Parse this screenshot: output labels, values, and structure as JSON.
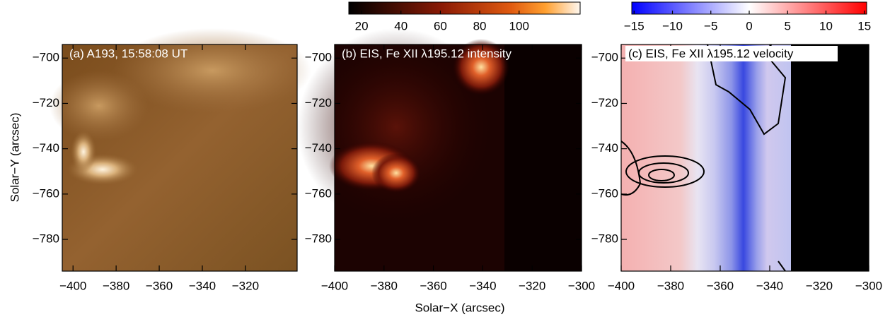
{
  "chart_data": [
    {
      "type": "image",
      "title": "(a) A193, 15:58:08 UT",
      "ylabel": "Solar−Y (arcsec)",
      "xlim": [
        -405,
        -296
      ],
      "ylim": [
        -794,
        -694
      ],
      "xticks": [
        {
          "value": -400,
          "label": "−400"
        },
        {
          "value": -380,
          "label": "−380"
        },
        {
          "value": -360,
          "label": "−360"
        },
        {
          "value": -340,
          "label": "−340"
        },
        {
          "value": -320,
          "label": "−320"
        }
      ],
      "yticks": [
        {
          "value": -700,
          "label": "−700"
        },
        {
          "value": -720,
          "label": "−720"
        },
        {
          "value": -740,
          "label": "−740"
        },
        {
          "value": -760,
          "label": "−760"
        },
        {
          "value": -780,
          "label": "−780"
        }
      ]
    },
    {
      "type": "image",
      "title": "(b) EIS, Fe XII λ195.12 intensity",
      "xlabel": "Solar−X (arcsec)",
      "xlim": [
        -400,
        -300
      ],
      "ylim": [
        -794,
        -694
      ],
      "xticks": [
        {
          "value": -400,
          "label": "−400"
        },
        {
          "value": -380,
          "label": "−380"
        },
        {
          "value": -360,
          "label": "−360"
        },
        {
          "value": -340,
          "label": "−340"
        },
        {
          "value": -320,
          "label": "−320"
        },
        {
          "value": -300,
          "label": "−300"
        }
      ],
      "yticks": [
        {
          "value": -700,
          "label": "−700"
        },
        {
          "value": -720,
          "label": "−720"
        },
        {
          "value": -740,
          "label": "−740"
        },
        {
          "value": -760,
          "label": "−760"
        },
        {
          "value": -780,
          "label": "−780"
        }
      ],
      "colorbar": {
        "lim": [
          13.5,
          131
        ],
        "ticks": [
          20,
          40,
          60,
          80,
          100
        ]
      }
    },
    {
      "type": "image",
      "title": "(c) EIS, Fe XII λ195.12 velocity",
      "xlim": [
        -400,
        -300
      ],
      "ylim": [
        -794,
        -694
      ],
      "xticks": [
        {
          "value": -400,
          "label": "−400"
        },
        {
          "value": -380,
          "label": "−380"
        },
        {
          "value": -360,
          "label": "−360"
        },
        {
          "value": -340,
          "label": "−340"
        },
        {
          "value": -320,
          "label": "−320"
        },
        {
          "value": -300,
          "label": "−300"
        }
      ],
      "yticks": [
        {
          "value": -700,
          "label": "−700"
        },
        {
          "value": -720,
          "label": "−720"
        },
        {
          "value": -740,
          "label": "−740"
        },
        {
          "value": -760,
          "label": "−760"
        },
        {
          "value": -780,
          "label": "−780"
        }
      ],
      "colorbar": {
        "lim": [
          -15.3,
          15.3
        ],
        "ticks": [
          {
            "value": -15,
            "label": "−15"
          },
          {
            "value": -10,
            "label": "−10"
          },
          {
            "value": -5,
            "label": "−5"
          },
          0,
          5,
          10,
          15
        ]
      }
    }
  ]
}
